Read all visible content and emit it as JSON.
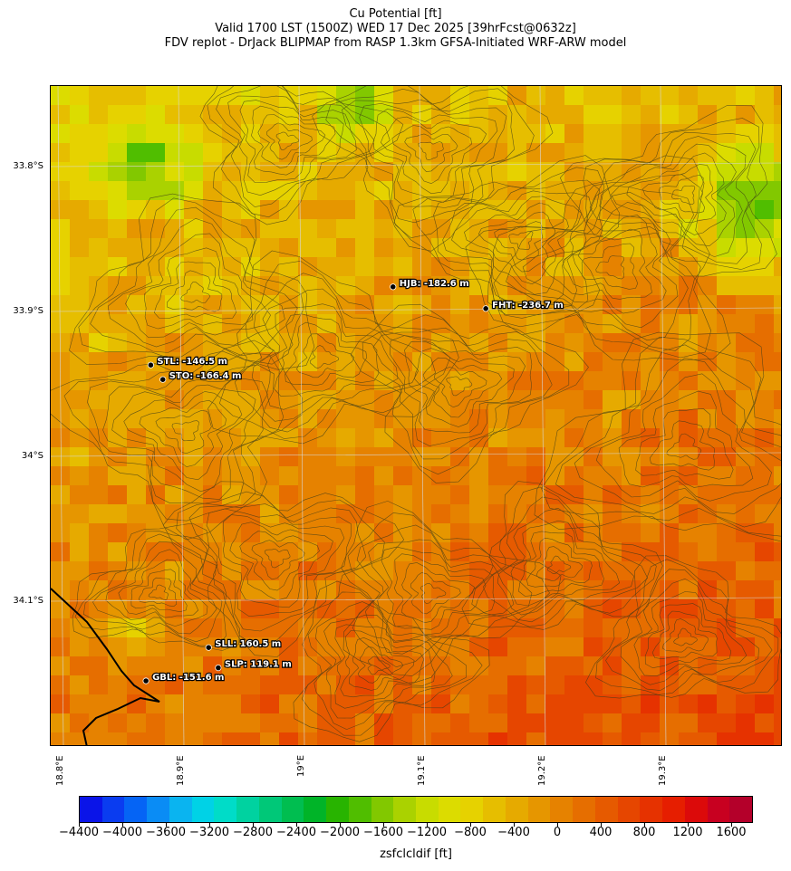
{
  "title": {
    "line1": "Cu Potential [ft]",
    "line2": "Valid 1700 LST (1500Z) WED 17 Dec 2025 [39hrFcst@0632z]",
    "line3": "FDV replot - DrJack BLIPMAP from RASP 1.3km GFSA-Initiated WRF-ARW model"
  },
  "map": {
    "lat_labels": [
      "33.8°S",
      "33.9°S",
      "34°S",
      "34.1°S"
    ],
    "lon_labels": [
      "18.8°E",
      "18.9°E",
      "19°E",
      "19.1°E",
      "19.2°E",
      "19.3°E"
    ],
    "stations": [
      {
        "code": "HJB",
        "label": "HJB: -182.6 m",
        "lat": -33.883,
        "lon": 19.078
      },
      {
        "code": "FHT",
        "label": "FHT: -236.7 m",
        "lat": -33.898,
        "lon": 19.155
      },
      {
        "code": "STL",
        "label": "STL: -146.5 m",
        "lat": -33.937,
        "lon": 18.877
      },
      {
        "code": "STO",
        "label": "STO: -166.4 m",
        "lat": -33.947,
        "lon": 18.887
      },
      {
        "code": "SLL",
        "label": "SLL: 160.5 m",
        "lat": -34.132,
        "lon": 18.925
      },
      {
        "code": "SLP",
        "label": "SLP: 119.1 m",
        "lat": -34.146,
        "lon": 18.933
      },
      {
        "code": "GBL",
        "label": "GBL: -151.6 m",
        "lat": -34.155,
        "lon": 18.873
      }
    ]
  },
  "colorbar": {
    "label": "zsfclcldif [ft]",
    "tick_labels": [
      "−4400",
      "−4000",
      "−3600",
      "−3200",
      "−2800",
      "−2400",
      "−2000",
      "−1600",
      "−1200",
      "−800",
      "−400",
      "0",
      "400",
      "800",
      "1200",
      "1600"
    ],
    "range": [
      -4400,
      1800
    ],
    "colors": [
      "#0a14e8",
      "#0a3cf0",
      "#0564f5",
      "#0a8cf5",
      "#0ab4f0",
      "#00d2e6",
      "#00dcc8",
      "#00d2a0",
      "#00c878",
      "#00be50",
      "#00b428",
      "#28b400",
      "#50be00",
      "#82c800",
      "#aad200",
      "#c8dc00",
      "#dcdc00",
      "#e6d200",
      "#e6be00",
      "#e6aa00",
      "#e69600",
      "#e68200",
      "#e66e00",
      "#e65a00",
      "#e64600",
      "#e63200",
      "#e61e00",
      "#dc0a0a",
      "#c80020",
      "#b4002a"
    ]
  },
  "colors": {
    "coastline": "#000000",
    "contour": "#3a3a1a",
    "grid": "#d8d8d8"
  }
}
